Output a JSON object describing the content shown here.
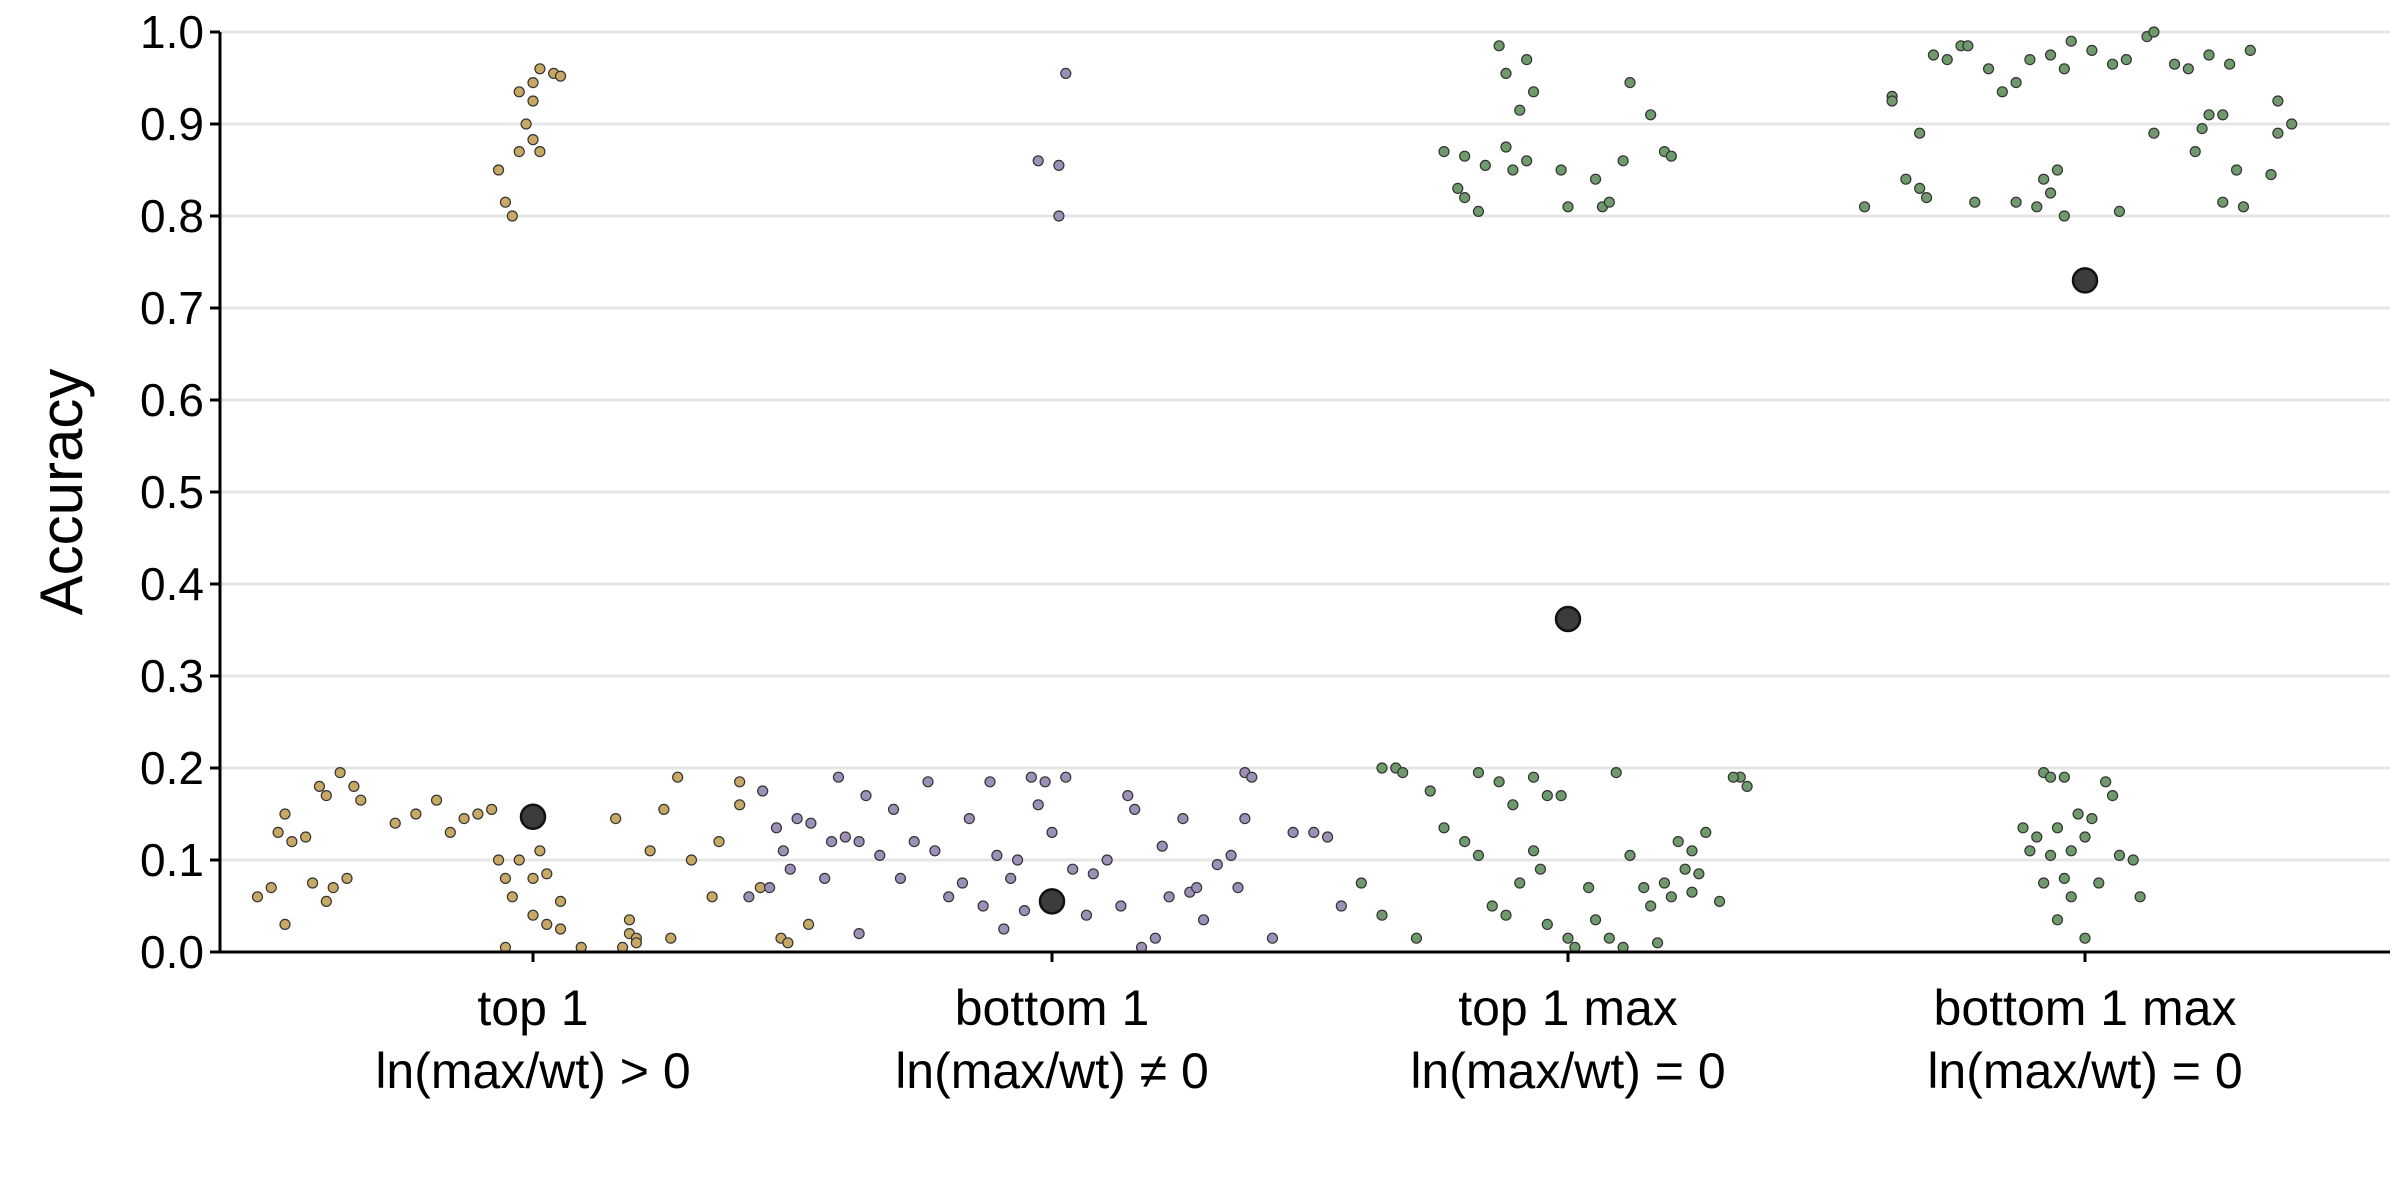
{
  "chart_data": {
    "type": "scatter",
    "title": "",
    "xlabel": "",
    "ylabel": "Accuracy",
    "ylim": [
      0,
      1
    ],
    "yticks": [
      "0.0",
      "0.1",
      "0.2",
      "0.3",
      "0.4",
      "0.5",
      "0.6",
      "0.7",
      "0.8",
      "0.9",
      "1.0"
    ],
    "grid": "horizontal",
    "categories": [
      {
        "line1": "top 1",
        "line2": "ln(max/wt) > 0"
      },
      {
        "line1": "bottom 1",
        "line2": "ln(max/wt) ≠ 0"
      },
      {
        "line1": "top 1 max",
        "line2": "ln(max/wt) = 0"
      },
      {
        "line1": "bottom 1 max",
        "line2": "ln(max/wt) = 0"
      }
    ],
    "series": [
      {
        "category_index": 0,
        "color": "#c8a865",
        "mean": 0.147,
        "points": [
          [
            -0.03,
            0.8
          ],
          [
            -0.04,
            0.815
          ],
          [
            -0.05,
            0.85
          ],
          [
            -0.02,
            0.87
          ],
          [
            0.0,
            0.883
          ],
          [
            0.01,
            0.87
          ],
          [
            -0.01,
            0.9
          ],
          [
            0.0,
            0.925
          ],
          [
            -0.02,
            0.935
          ],
          [
            0.0,
            0.945
          ],
          [
            0.03,
            0.955
          ],
          [
            0.01,
            0.96
          ],
          [
            0.04,
            0.952
          ],
          [
            -0.4,
            0.06
          ],
          [
            -0.38,
            0.07
          ],
          [
            -0.36,
            0.03
          ],
          [
            -0.37,
            0.13
          ],
          [
            -0.35,
            0.12
          ],
          [
            -0.33,
            0.125
          ],
          [
            -0.36,
            0.15
          ],
          [
            -0.31,
            0.18
          ],
          [
            -0.3,
            0.17
          ],
          [
            -0.28,
            0.195
          ],
          [
            -0.26,
            0.18
          ],
          [
            -0.25,
            0.165
          ],
          [
            -0.32,
            0.075
          ],
          [
            -0.3,
            0.055
          ],
          [
            -0.29,
            0.07
          ],
          [
            -0.27,
            0.08
          ],
          [
            -0.2,
            0.14
          ],
          [
            -0.17,
            0.15
          ],
          [
            -0.14,
            0.165
          ],
          [
            -0.12,
            0.13
          ],
          [
            -0.1,
            0.145
          ],
          [
            -0.08,
            0.15
          ],
          [
            -0.06,
            0.155
          ],
          [
            -0.05,
            0.1
          ],
          [
            -0.04,
            0.08
          ],
          [
            -0.03,
            0.06
          ],
          [
            -0.02,
            0.1
          ],
          [
            0.0,
            0.08
          ],
          [
            0.01,
            0.11
          ],
          [
            0.02,
            0.085
          ],
          [
            0.04,
            0.055
          ],
          [
            -0.04,
            0.005
          ],
          [
            0.0,
            0.04
          ],
          [
            0.02,
            0.03
          ],
          [
            0.04,
            0.025
          ],
          [
            0.07,
            0.005
          ],
          [
            0.14,
            0.035
          ],
          [
            0.14,
            0.02
          ],
          [
            0.15,
            0.015
          ],
          [
            0.13,
            0.005
          ],
          [
            0.15,
            0.01
          ],
          [
            0.2,
            0.015
          ],
          [
            0.12,
            0.145
          ],
          [
            0.17,
            0.11
          ],
          [
            0.19,
            0.155
          ],
          [
            0.21,
            0.19
          ],
          [
            0.23,
            0.1
          ],
          [
            0.26,
            0.06
          ],
          [
            0.3,
            0.185
          ],
          [
            0.3,
            0.16
          ],
          [
            0.33,
            0.07
          ],
          [
            0.36,
            0.015
          ],
          [
            0.37,
            0.01
          ],
          [
            0.4,
            0.03
          ],
          [
            0.27,
            0.12
          ]
        ]
      },
      {
        "category_index": 1,
        "color": "#9c8fb8",
        "mean": 0.055,
        "points": [
          [
            0.02,
            0.955
          ],
          [
            -0.02,
            0.86
          ],
          [
            0.01,
            0.855
          ],
          [
            0.01,
            0.8
          ],
          [
            -0.42,
            0.175
          ],
          [
            -0.4,
            0.135
          ],
          [
            -0.39,
            0.11
          ],
          [
            -0.38,
            0.09
          ],
          [
            -0.41,
            0.07
          ],
          [
            -0.37,
            0.145
          ],
          [
            -0.35,
            0.14
          ],
          [
            -0.32,
            0.12
          ],
          [
            -0.33,
            0.08
          ],
          [
            -0.3,
            0.125
          ],
          [
            -0.28,
            0.12
          ],
          [
            -0.27,
            0.17
          ],
          [
            -0.31,
            0.19
          ],
          [
            -0.25,
            0.105
          ],
          [
            -0.23,
            0.155
          ],
          [
            -0.22,
            0.08
          ],
          [
            -0.2,
            0.12
          ],
          [
            -0.18,
            0.185
          ],
          [
            -0.17,
            0.11
          ],
          [
            -0.15,
            0.06
          ],
          [
            -0.13,
            0.075
          ],
          [
            -0.12,
            0.145
          ],
          [
            -0.1,
            0.05
          ],
          [
            -0.09,
            0.185
          ],
          [
            -0.08,
            0.105
          ],
          [
            -0.07,
            0.025
          ],
          [
            -0.06,
            0.08
          ],
          [
            -0.05,
            0.1
          ],
          [
            -0.04,
            0.045
          ],
          [
            -0.03,
            0.19
          ],
          [
            -0.02,
            0.16
          ],
          [
            -0.01,
            0.185
          ],
          [
            0.0,
            0.13
          ],
          [
            0.02,
            0.19
          ],
          [
            0.03,
            0.09
          ],
          [
            0.05,
            0.04
          ],
          [
            0.06,
            0.085
          ],
          [
            0.08,
            0.1
          ],
          [
            0.1,
            0.05
          ],
          [
            0.11,
            0.17
          ],
          [
            0.12,
            0.155
          ],
          [
            0.13,
            0.005
          ],
          [
            0.15,
            0.015
          ],
          [
            0.16,
            0.115
          ],
          [
            0.17,
            0.06
          ],
          [
            0.19,
            0.145
          ],
          [
            0.2,
            0.065
          ],
          [
            0.21,
            0.07
          ],
          [
            0.22,
            0.035
          ],
          [
            0.24,
            0.095
          ],
          [
            0.26,
            0.105
          ],
          [
            0.28,
            0.145
          ],
          [
            0.27,
            0.07
          ],
          [
            0.28,
            0.195
          ],
          [
            0.29,
            0.19
          ],
          [
            0.32,
            0.015
          ],
          [
            0.35,
            0.13
          ],
          [
            0.38,
            0.13
          ],
          [
            0.4,
            0.125
          ],
          [
            0.42,
            0.05
          ],
          [
            -0.44,
            0.06
          ],
          [
            -0.28,
            0.02
          ]
        ]
      },
      {
        "category_index": 2,
        "color": "#6f9a6c",
        "mean": 0.362,
        "points": [
          [
            -0.1,
            0.985
          ],
          [
            -0.06,
            0.97
          ],
          [
            -0.09,
            0.955
          ],
          [
            -0.05,
            0.935
          ],
          [
            -0.07,
            0.915
          ],
          [
            0.09,
            0.945
          ],
          [
            0.12,
            0.91
          ],
          [
            -0.18,
            0.87
          ],
          [
            -0.15,
            0.865
          ],
          [
            -0.09,
            0.875
          ],
          [
            -0.06,
            0.86
          ],
          [
            -0.08,
            0.85
          ],
          [
            -0.12,
            0.855
          ],
          [
            -0.16,
            0.83
          ],
          [
            -0.15,
            0.82
          ],
          [
            -0.01,
            0.85
          ],
          [
            0.04,
            0.84
          ],
          [
            0.05,
            0.81
          ],
          [
            0.06,
            0.815
          ],
          [
            0.08,
            0.86
          ],
          [
            0.14,
            0.87
          ],
          [
            0.15,
            0.865
          ],
          [
            -0.13,
            0.805
          ],
          [
            0.0,
            0.81
          ],
          [
            -0.27,
            0.2
          ],
          [
            -0.25,
            0.2
          ],
          [
            -0.3,
            0.075
          ],
          [
            -0.27,
            0.04
          ],
          [
            -0.22,
            0.015
          ],
          [
            -0.2,
            0.175
          ],
          [
            -0.18,
            0.135
          ],
          [
            -0.13,
            0.195
          ],
          [
            -0.1,
            0.185
          ],
          [
            -0.08,
            0.16
          ],
          [
            -0.05,
            0.19
          ],
          [
            -0.03,
            0.17
          ],
          [
            -0.15,
            0.12
          ],
          [
            -0.13,
            0.105
          ],
          [
            -0.11,
            0.05
          ],
          [
            -0.09,
            0.04
          ],
          [
            -0.07,
            0.075
          ],
          [
            -0.05,
            0.11
          ],
          [
            -0.04,
            0.09
          ],
          [
            -0.03,
            0.03
          ],
          [
            -0.01,
            0.17
          ],
          [
            0.0,
            0.015
          ],
          [
            0.01,
            0.005
          ],
          [
            0.03,
            0.07
          ],
          [
            0.04,
            0.035
          ],
          [
            0.06,
            0.015
          ],
          [
            0.08,
            0.005
          ],
          [
            0.07,
            0.195
          ],
          [
            0.09,
            0.105
          ],
          [
            0.11,
            0.07
          ],
          [
            0.12,
            0.05
          ],
          [
            0.14,
            0.075
          ],
          [
            0.15,
            0.06
          ],
          [
            0.18,
            0.065
          ],
          [
            0.2,
            0.13
          ],
          [
            0.22,
            0.055
          ],
          [
            0.25,
            0.19
          ],
          [
            0.26,
            0.18
          ],
          [
            0.19,
            0.085
          ],
          [
            -0.24,
            0.195
          ],
          [
            0.17,
            0.09
          ],
          [
            0.13,
            0.01
          ],
          [
            0.16,
            0.12
          ],
          [
            0.18,
            0.11
          ],
          [
            0.24,
            0.19
          ]
        ]
      },
      {
        "category_index": 3,
        "color": "#6f9a6c",
        "mean": 0.73,
        "points": [
          [
            -0.32,
            0.81
          ],
          [
            -0.28,
            0.93
          ],
          [
            -0.28,
            0.925
          ],
          [
            -0.24,
            0.89
          ],
          [
            -0.22,
            0.975
          ],
          [
            -0.2,
            0.97
          ],
          [
            -0.18,
            0.985
          ],
          [
            -0.17,
            0.985
          ],
          [
            -0.14,
            0.96
          ],
          [
            -0.12,
            0.935
          ],
          [
            -0.1,
            0.945
          ],
          [
            -0.08,
            0.97
          ],
          [
            -0.05,
            0.975
          ],
          [
            -0.03,
            0.96
          ],
          [
            -0.02,
            0.99
          ],
          [
            0.01,
            0.98
          ],
          [
            0.04,
            0.965
          ],
          [
            0.06,
            0.97
          ],
          [
            0.09,
            0.995
          ],
          [
            0.1,
            1.0
          ],
          [
            0.13,
            0.965
          ],
          [
            0.15,
            0.96
          ],
          [
            0.18,
            0.975
          ],
          [
            0.21,
            0.965
          ],
          [
            0.24,
            0.98
          ],
          [
            -0.26,
            0.84
          ],
          [
            -0.24,
            0.83
          ],
          [
            -0.23,
            0.82
          ],
          [
            -0.16,
            0.815
          ],
          [
            -0.1,
            0.815
          ],
          [
            -0.07,
            0.81
          ],
          [
            -0.05,
            0.825
          ],
          [
            -0.06,
            0.84
          ],
          [
            -0.04,
            0.85
          ],
          [
            -0.03,
            0.8
          ],
          [
            0.05,
            0.805
          ],
          [
            0.1,
            0.89
          ],
          [
            0.16,
            0.87
          ],
          [
            0.18,
            0.91
          ],
          [
            0.17,
            0.895
          ],
          [
            0.2,
            0.91
          ],
          [
            0.2,
            0.815
          ],
          [
            0.23,
            0.81
          ],
          [
            0.22,
            0.85
          ],
          [
            0.27,
            0.845
          ],
          [
            0.28,
            0.925
          ],
          [
            0.28,
            0.89
          ],
          [
            0.3,
            0.9
          ],
          [
            -0.06,
            0.195
          ],
          [
            -0.05,
            0.19
          ],
          [
            -0.03,
            0.19
          ],
          [
            -0.09,
            0.135
          ],
          [
            -0.08,
            0.11
          ],
          [
            -0.07,
            0.125
          ],
          [
            -0.06,
            0.075
          ],
          [
            -0.05,
            0.105
          ],
          [
            -0.04,
            0.135
          ],
          [
            -0.02,
            0.11
          ],
          [
            -0.01,
            0.15
          ],
          [
            0.01,
            0.145
          ],
          [
            0.0,
            0.125
          ],
          [
            -0.02,
            0.06
          ],
          [
            -0.03,
            0.08
          ],
          [
            -0.04,
            0.035
          ],
          [
            0.02,
            0.075
          ],
          [
            0.03,
            0.185
          ],
          [
            0.04,
            0.17
          ],
          [
            0.05,
            0.105
          ],
          [
            0.07,
            0.1
          ],
          [
            0.08,
            0.06
          ],
          [
            0.0,
            0.015
          ]
        ]
      }
    ]
  }
}
